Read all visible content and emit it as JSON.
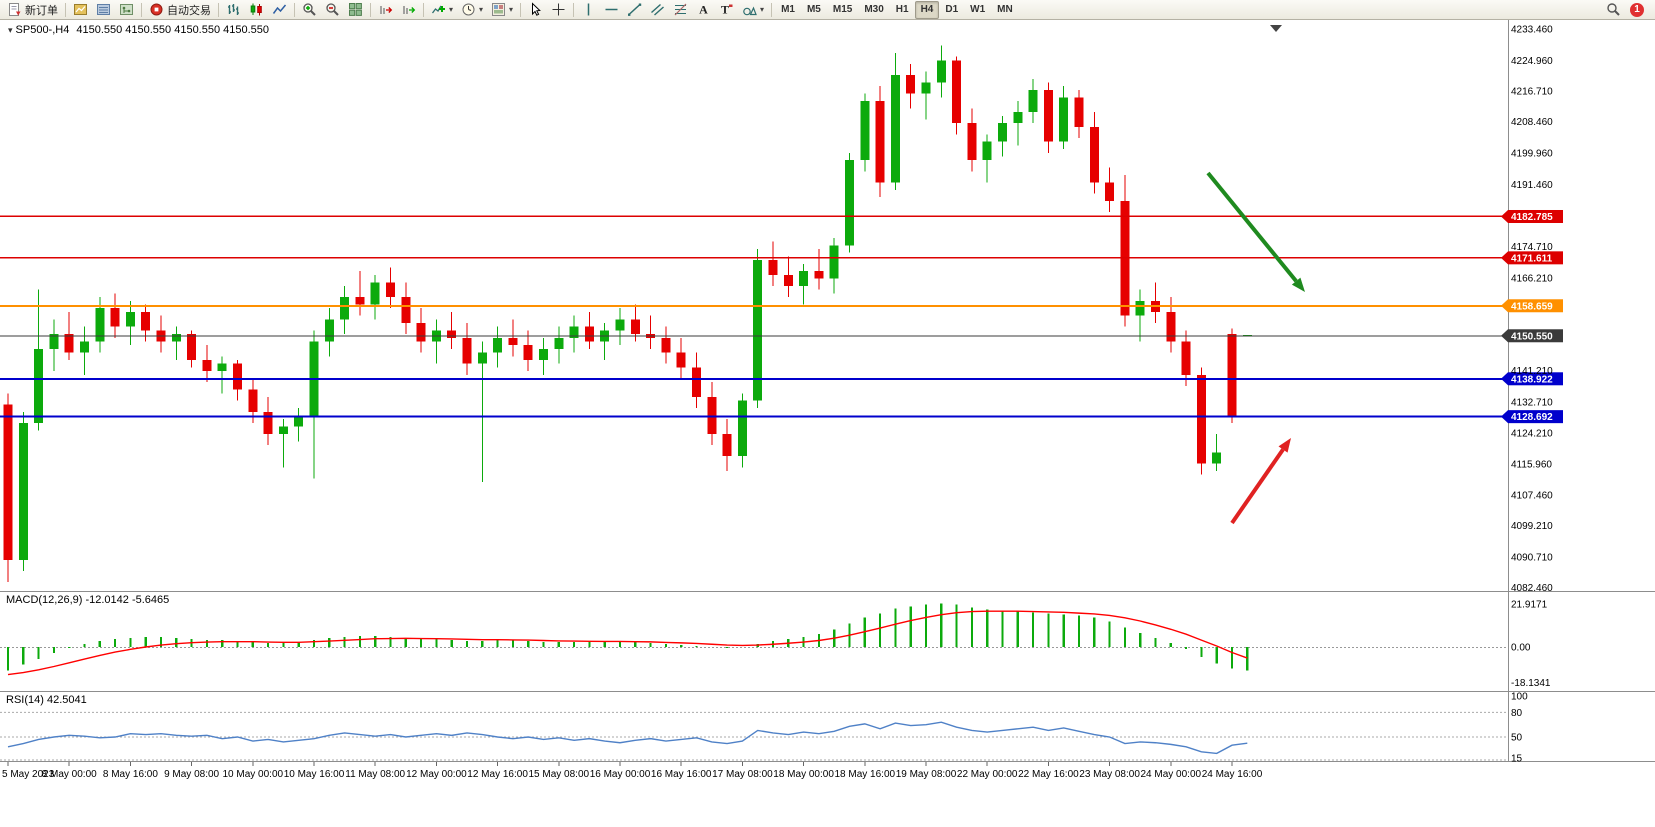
{
  "toolbar": {
    "new_order_label": "新订单",
    "auto_trading_label": "自动交易",
    "buttons": [
      {
        "name": "new-order-button",
        "icon": "new-order",
        "label_key": "new_order_label"
      },
      {
        "sep": true
      },
      {
        "name": "market-watch-button",
        "icon": "market-watch"
      },
      {
        "name": "data-window-button",
        "icon": "data-window"
      },
      {
        "name": "navigator-button",
        "icon": "navigator"
      },
      {
        "sep": true
      },
      {
        "name": "auto-trading-button",
        "icon": "auto-trading",
        "label_key": "auto_trading_label"
      },
      {
        "sep": true
      },
      {
        "name": "bar-chart-button",
        "icon": "bar-chart"
      },
      {
        "name": "candle-chart-button",
        "icon": "candle-chart"
      },
      {
        "name": "line-chart-button",
        "icon": "line-chart"
      },
      {
        "sep": true
      },
      {
        "name": "zoom-in-button",
        "icon": "zoom-in"
      },
      {
        "name": "zoom-out-button",
        "icon": "zoom-out"
      },
      {
        "name": "tile-windows-button",
        "icon": "tile-windows"
      },
      {
        "sep": true
      },
      {
        "name": "chart-shift-button",
        "icon": "chart-shift"
      },
      {
        "name": "auto-scroll-button",
        "icon": "auto-scroll"
      },
      {
        "sep": true
      },
      {
        "name": "indicators-button",
        "icon": "indicators",
        "dropdown": true
      },
      {
        "name": "periods-button",
        "icon": "periods",
        "dropdown": true
      },
      {
        "name": "templates-button",
        "icon": "templates",
        "dropdown": true
      },
      {
        "sep": true
      },
      {
        "name": "cursor-button",
        "icon": "cursor"
      },
      {
        "name": "crosshair-button",
        "icon": "crosshair"
      },
      {
        "sep": true
      },
      {
        "name": "vertical-line-button",
        "icon": "vertical-line"
      },
      {
        "name": "horizontal-line-button",
        "icon": "horizontal-line"
      },
      {
        "name": "trend-line-button",
        "icon": "trend-line"
      },
      {
        "name": "channel-button",
        "icon": "channel"
      },
      {
        "name": "fibonacci-button",
        "icon": "fibonacci"
      },
      {
        "name": "text-button",
        "icon": "text"
      },
      {
        "name": "text-label-button",
        "icon": "text-label"
      },
      {
        "name": "shapes-button",
        "icon": "shapes",
        "dropdown": true
      },
      {
        "sep": true
      }
    ],
    "timeframes": [
      "M1",
      "M5",
      "M15",
      "M30",
      "H1",
      "H4",
      "D1",
      "W1",
      "MN"
    ],
    "active_timeframe": "H4",
    "notification_count": "1"
  },
  "chart": {
    "title_symbol": "SP500-,H4",
    "title_quote": "4150.550 4150.550 4150.550 4150.550",
    "macd_label": "MACD(12,26,9) -12.0142 -5.6465",
    "rsi_label": "RSI(14) 42.5041"
  },
  "colors": {
    "bull": "#0caa0c",
    "bear": "#e60000",
    "macd_hist": "#0caa0c",
    "macd_signal": "#ff0000",
    "rsi_line": "#4f81c7",
    "line_red": "#dd0000",
    "line_orange": "#ff9000",
    "line_blue": "#0000cc",
    "line_current": "#3b3b3b"
  },
  "chart_data": {
    "type": "candlestick",
    "symbol": "SP500-",
    "timeframe": "H4",
    "ylim": [
      4082.46,
      4233.46
    ],
    "ohlc": [
      [
        4132,
        4135,
        4084,
        4090
      ],
      [
        4090,
        4130,
        4087,
        4127
      ],
      [
        4127,
        4163,
        4125,
        4147
      ],
      [
        4147,
        4155,
        4141,
        4151
      ],
      [
        4151,
        4157,
        4144,
        4146
      ],
      [
        4146,
        4153,
        4140,
        4149
      ],
      [
        4149,
        4161,
        4146,
        4158
      ],
      [
        4158,
        4162,
        4150,
        4153
      ],
      [
        4153,
        4160,
        4148,
        4157
      ],
      [
        4157,
        4159,
        4149,
        4152
      ],
      [
        4152,
        4156,
        4146,
        4149
      ],
      [
        4149,
        4153,
        4144,
        4151
      ],
      [
        4151,
        4152,
        4142,
        4144
      ],
      [
        4144,
        4148,
        4138,
        4141
      ],
      [
        4141,
        4145,
        4135,
        4143
      ],
      [
        4143,
        4144,
        4133,
        4136
      ],
      [
        4136,
        4139,
        4127,
        4130
      ],
      [
        4130,
        4134,
        4121,
        4124
      ],
      [
        4124,
        4128,
        4115,
        4126
      ],
      [
        4126,
        4131,
        4122,
        4129
      ],
      [
        4129,
        4152,
        4112,
        4149
      ],
      [
        4149,
        4158,
        4145,
        4155
      ],
      [
        4155,
        4164,
        4151,
        4161
      ],
      [
        4161,
        4168,
        4156,
        4159
      ],
      [
        4159,
        4167,
        4155,
        4165
      ],
      [
        4165,
        4169,
        4158,
        4161
      ],
      [
        4161,
        4165,
        4151,
        4154
      ],
      [
        4154,
        4158,
        4146,
        4149
      ],
      [
        4149,
        4155,
        4143,
        4152
      ],
      [
        4152,
        4157,
        4147,
        4150
      ],
      [
        4150,
        4154,
        4140,
        4143
      ],
      [
        4143,
        4149,
        4111,
        4146
      ],
      [
        4146,
        4153,
        4142,
        4150
      ],
      [
        4150,
        4155,
        4145,
        4148
      ],
      [
        4148,
        4152,
        4141,
        4144
      ],
      [
        4144,
        4150,
        4140,
        4147
      ],
      [
        4147,
        4153,
        4143,
        4150
      ],
      [
        4150,
        4156,
        4146,
        4153
      ],
      [
        4153,
        4157,
        4147,
        4149
      ],
      [
        4149,
        4154,
        4144,
        4152
      ],
      [
        4152,
        4158,
        4148,
        4155
      ],
      [
        4155,
        4159,
        4149,
        4151
      ],
      [
        4151,
        4156,
        4147,
        4150
      ],
      [
        4150,
        4153,
        4143,
        4146
      ],
      [
        4146,
        4150,
        4139,
        4142
      ],
      [
        4142,
        4146,
        4131,
        4134
      ],
      [
        4134,
        4138,
        4121,
        4124
      ],
      [
        4124,
        4128,
        4114,
        4118
      ],
      [
        4118,
        4135,
        4115,
        4133
      ],
      [
        4133,
        4174,
        4131,
        4171
      ],
      [
        4171,
        4176,
        4164,
        4167
      ],
      [
        4167,
        4172,
        4161,
        4164
      ],
      [
        4164,
        4170,
        4159,
        4168
      ],
      [
        4168,
        4174,
        4163,
        4166
      ],
      [
        4166,
        4177,
        4162,
        4175
      ],
      [
        4175,
        4200,
        4173,
        4198
      ],
      [
        4198,
        4216,
        4195,
        4214
      ],
      [
        4214,
        4218,
        4188,
        4192
      ],
      [
        4192,
        4227,
        4190,
        4221
      ],
      [
        4221,
        4224,
        4212,
        4216
      ],
      [
        4216,
        4222,
        4209,
        4219
      ],
      [
        4219,
        4229,
        4215,
        4225
      ],
      [
        4225,
        4226,
        4205,
        4208
      ],
      [
        4208,
        4212,
        4195,
        4198
      ],
      [
        4198,
        4205,
        4192,
        4203
      ],
      [
        4203,
        4210,
        4199,
        4208
      ],
      [
        4208,
        4214,
        4202,
        4211
      ],
      [
        4211,
        4220,
        4208,
        4217
      ],
      [
        4217,
        4219,
        4200,
        4203
      ],
      [
        4203,
        4218,
        4201,
        4215
      ],
      [
        4215,
        4217,
        4204,
        4207
      ],
      [
        4207,
        4211,
        4189,
        4192
      ],
      [
        4192,
        4196,
        4184,
        4187
      ],
      [
        4187,
        4194,
        4153,
        4156
      ],
      [
        4156,
        4163,
        4149,
        4160
      ],
      [
        4160,
        4165,
        4154,
        4157
      ],
      [
        4157,
        4161,
        4146,
        4149
      ],
      [
        4149,
        4152,
        4137,
        4140
      ],
      [
        4140,
        4142,
        4113,
        4116
      ],
      [
        4116,
        4124,
        4114,
        4119
      ],
      [
        4151,
        4152.5,
        4127,
        4129
      ],
      [
        4150.55,
        4150.55,
        4150.55,
        4150.55
      ]
    ],
    "time_labels": [
      "5 May 2023",
      "8 May 00:00",
      "8 May 16:00",
      "9 May 08:00",
      "10 May 00:00",
      "10 May 16:00",
      "11 May 08:00",
      "12 May 00:00",
      "12 May 16:00",
      "15 May 08:00",
      "16 May 00:00",
      "16 May 16:00",
      "17 May 08:00",
      "18 May 00:00",
      "18 May 16:00",
      "19 May 08:00",
      "22 May 00:00",
      "22 May 16:00",
      "23 May 08:00",
      "24 May 00:00",
      "24 May 16:00"
    ],
    "price_ticks": [
      4233.46,
      4224.96,
      4216.71,
      4208.46,
      4199.96,
      4191.46,
      4174.71,
      4166.21,
      4141.21,
      4132.71,
      4124.21,
      4115.96,
      4107.46,
      4099.21,
      4090.71,
      4082.46
    ],
    "price_lines": [
      {
        "value": 4182.785,
        "label": "4182.785",
        "color": "#dd0000",
        "width": 1.5
      },
      {
        "value": 4171.611,
        "label": "4171.611",
        "color": "#dd0000",
        "width": 1.5
      },
      {
        "value": 4158.659,
        "label": "4158.659",
        "color": "#ff9000",
        "width": 2
      },
      {
        "value": 4150.55,
        "label": "4150.550",
        "color": "#3b3b3b",
        "width": 1,
        "current": true
      },
      {
        "value": 4138.922,
        "label": "4138.922",
        "color": "#0000cc",
        "width": 2
      },
      {
        "value": 4128.692,
        "label": "4128.692",
        "color": "#0000cc",
        "width": 2
      }
    ],
    "macd": {
      "params": "12,26,9",
      "value": -12.0142,
      "signal_value": -5.6465,
      "axis_values": [
        21.9171,
        0,
        -18.1341
      ],
      "axis_labels": [
        "21.9171",
        "0.00",
        "-18.1341"
      ],
      "hist": [
        -12,
        -9,
        -6,
        -3,
        -0.5,
        1.5,
        3,
        4,
        4.5,
        5,
        5,
        4.5,
        4,
        3.5,
        3.5,
        3,
        2.5,
        2,
        2,
        2.5,
        3.5,
        4.5,
        5,
        5.5,
        5.5,
        5,
        4.5,
        4,
        4,
        3.5,
        3,
        3,
        3.5,
        3.5,
        3,
        2.5,
        2.5,
        2.5,
        2.5,
        2.5,
        2.5,
        2.5,
        2,
        1.5,
        1,
        0.5,
        0,
        -0.5,
        0,
        1.5,
        3,
        4,
        5,
        6.5,
        9,
        12,
        15,
        17,
        19.5,
        20.5,
        21.5,
        22,
        21.5,
        20,
        19,
        18.5,
        18,
        17.5,
        17,
        16.5,
        16,
        15,
        13,
        10,
        7,
        4.5,
        2,
        -1,
        -5,
        -8.5,
        -11,
        -12
      ],
      "signal": [
        -14,
        -13,
        -11.6,
        -9.9,
        -8,
        -6.1,
        -4.3,
        -2.6,
        -1.2,
        0,
        1,
        1.7,
        2.2,
        2.5,
        2.7,
        2.7,
        2.7,
        2.5,
        2.4,
        2.4,
        2.7,
        3,
        3.4,
        3.8,
        4.2,
        4.3,
        4.4,
        4.3,
        4.2,
        4.1,
        3.9,
        3.7,
        3.7,
        3.6,
        3.5,
        3.3,
        3.1,
        3,
        2.9,
        2.8,
        2.8,
        2.7,
        2.6,
        2.3,
        2.1,
        1.8,
        1.4,
        1,
        0.8,
        1,
        1.4,
        1.9,
        2.5,
        3.3,
        4.5,
        6,
        7.8,
        9.6,
        11.6,
        13.4,
        15,
        16.4,
        17.4,
        18,
        18.2,
        18.2,
        18.2,
        18,
        17.8,
        17.6,
        17.2,
        16.8,
        16,
        14.8,
        13.2,
        11.2,
        9,
        6.5,
        3.5,
        0.5,
        -2.8,
        -5.6
      ]
    },
    "rsi": {
      "period": 14,
      "value": 42.5041,
      "levels": [
        80,
        50,
        20
      ],
      "axis_labels": [
        "100",
        "80",
        "50",
        "15"
      ],
      "axis_values": [
        100,
        80,
        50,
        15
      ],
      "values": [
        38,
        42,
        47,
        50,
        52,
        51,
        49,
        50,
        54,
        53,
        54,
        52,
        51,
        52,
        48,
        50,
        45,
        47,
        44,
        46,
        48,
        52,
        55,
        53,
        51,
        53,
        50,
        52,
        54,
        52,
        55,
        53,
        50,
        48,
        50,
        47,
        49,
        46,
        48,
        45,
        43,
        46,
        48,
        45,
        47,
        49,
        44,
        42,
        45,
        58,
        55,
        53,
        56,
        54,
        57,
        63,
        66,
        60,
        67,
        64,
        65,
        68,
        62,
        58,
        56,
        58,
        60,
        62,
        58,
        61,
        57,
        53,
        50,
        42,
        44,
        43,
        41,
        38,
        32,
        30,
        40,
        42.5
      ]
    },
    "annotations": [
      {
        "type": "arrow",
        "name": "green-down-arrow",
        "color": "#1f8a1f",
        "from": [
          1208,
          153
        ],
        "to": [
          1305,
          272
        ]
      },
      {
        "type": "arrow",
        "name": "red-up-arrow",
        "color": "#e02222",
        "from": [
          1232,
          503
        ],
        "to": [
          1291,
          418
        ]
      }
    ]
  }
}
